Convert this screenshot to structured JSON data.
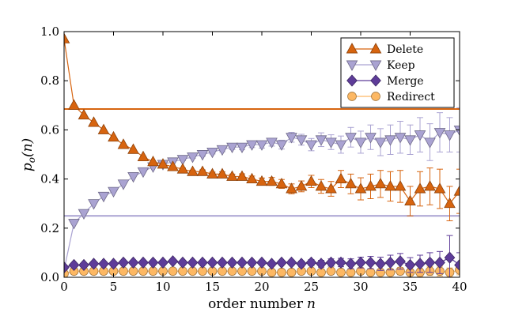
{
  "chart_data": {
    "type": "line",
    "title": "",
    "xlabel": "order number",
    "xlabel_var": "n",
    "ylabel_var": "p",
    "ylabel_sub": "o",
    "ylabel_arg": "(n)",
    "xlim": [
      0,
      40
    ],
    "ylim": [
      0,
      1.0
    ],
    "x_ticks": [
      0,
      5,
      10,
      15,
      20,
      25,
      30,
      35,
      40
    ],
    "y_ticks": [
      0.0,
      0.2,
      0.4,
      0.6,
      0.8,
      1.0
    ],
    "x_tick_labels": [
      "0",
      "5",
      "10",
      "15",
      "20",
      "25",
      "30",
      "35",
      "40"
    ],
    "y_tick_labels": [
      "0.0",
      "0.2",
      "0.4",
      "0.6",
      "0.8",
      "1.0"
    ],
    "legend_position": "top-right",
    "reference_lines": [
      {
        "series": "Delete",
        "y": 0.685,
        "color": "#d7640f"
      },
      {
        "series": "Keep",
        "y": 0.25,
        "color": "#aaa3d2"
      }
    ],
    "series": [
      {
        "name": "Delete",
        "marker": "triangle-up",
        "color": "#d7640f",
        "values": [
          0.97,
          0.7,
          0.66,
          0.63,
          0.6,
          0.57,
          0.54,
          0.52,
          0.49,
          0.47,
          0.46,
          0.45,
          0.44,
          0.43,
          0.43,
          0.42,
          0.42,
          0.41,
          0.41,
          0.4,
          0.39,
          0.39,
          0.38,
          0.36,
          0.37,
          0.39,
          0.37,
          0.36,
          0.4,
          0.38,
          0.36,
          0.37,
          0.38,
          0.37,
          0.37,
          0.31,
          0.36,
          0.37,
          0.36,
          0.3,
          0.35
        ],
        "errors": [
          0,
          0,
          0,
          0,
          0,
          0,
          0,
          0,
          0,
          0,
          0,
          0,
          0.005,
          0.006,
          0.007,
          0.008,
          0.009,
          0.01,
          0.011,
          0.012,
          0.014,
          0.016,
          0.018,
          0.02,
          0.022,
          0.025,
          0.028,
          0.03,
          0.035,
          0.04,
          0.045,
          0.05,
          0.055,
          0.06,
          0.065,
          0.06,
          0.07,
          0.075,
          0.08,
          0.07,
          0.09
        ]
      },
      {
        "name": "Keep",
        "marker": "triangle-down",
        "color": "#aaa3d2",
        "values": [
          0.03,
          0.22,
          0.26,
          0.3,
          0.33,
          0.35,
          0.38,
          0.41,
          0.43,
          0.45,
          0.46,
          0.47,
          0.48,
          0.49,
          0.5,
          0.51,
          0.52,
          0.53,
          0.53,
          0.54,
          0.54,
          0.55,
          0.54,
          0.57,
          0.56,
          0.54,
          0.56,
          0.55,
          0.54,
          0.57,
          0.55,
          0.57,
          0.55,
          0.56,
          0.57,
          0.56,
          0.58,
          0.55,
          0.59,
          0.58,
          0.6
        ],
        "errors": [
          0,
          0,
          0,
          0,
          0,
          0,
          0,
          0,
          0,
          0,
          0,
          0,
          0.005,
          0.006,
          0.007,
          0.008,
          0.009,
          0.01,
          0.011,
          0.012,
          0.014,
          0.016,
          0.018,
          0.02,
          0.022,
          0.025,
          0.028,
          0.03,
          0.035,
          0.04,
          0.045,
          0.05,
          0.055,
          0.06,
          0.065,
          0.06,
          0.07,
          0.075,
          0.08,
          0.07,
          0.09
        ]
      },
      {
        "name": "Merge",
        "marker": "diamond",
        "color": "#5e3c99",
        "values": [
          0.04,
          0.05,
          0.05,
          0.055,
          0.055,
          0.055,
          0.06,
          0.06,
          0.06,
          0.06,
          0.06,
          0.065,
          0.06,
          0.06,
          0.06,
          0.06,
          0.06,
          0.06,
          0.06,
          0.06,
          0.06,
          0.055,
          0.06,
          0.06,
          0.055,
          0.06,
          0.055,
          0.06,
          0.06,
          0.055,
          0.06,
          0.06,
          0.055,
          0.06,
          0.065,
          0.05,
          0.055,
          0.06,
          0.06,
          0.08,
          0.05
        ],
        "errors": [
          0,
          0,
          0,
          0,
          0,
          0,
          0,
          0,
          0,
          0,
          0,
          0,
          0.003,
          0.003,
          0.004,
          0.004,
          0.005,
          0.005,
          0.006,
          0.006,
          0.007,
          0.008,
          0.009,
          0.01,
          0.011,
          0.012,
          0.014,
          0.015,
          0.017,
          0.02,
          0.022,
          0.025,
          0.027,
          0.03,
          0.032,
          0.03,
          0.035,
          0.04,
          0.045,
          0.09,
          0.05
        ]
      },
      {
        "name": "Redirect",
        "marker": "circle",
        "color": "#fdb863",
        "values": [
          0.015,
          0.025,
          0.025,
          0.025,
          0.025,
          0.025,
          0.025,
          0.025,
          0.025,
          0.025,
          0.025,
          0.025,
          0.025,
          0.025,
          0.025,
          0.025,
          0.025,
          0.025,
          0.025,
          0.025,
          0.025,
          0.02,
          0.02,
          0.02,
          0.025,
          0.025,
          0.02,
          0.025,
          0.02,
          0.02,
          0.025,
          0.02,
          0.02,
          0.02,
          0.025,
          0.02,
          0.02,
          0.025,
          0.025,
          0.02,
          0.03
        ],
        "errors": [
          0,
          0,
          0,
          0,
          0,
          0,
          0,
          0,
          0,
          0,
          0,
          0,
          0.002,
          0.002,
          0.002,
          0.003,
          0.003,
          0.003,
          0.004,
          0.004,
          0.004,
          0.005,
          0.005,
          0.006,
          0.006,
          0.007,
          0.007,
          0.008,
          0.009,
          0.01,
          0.011,
          0.012,
          0.013,
          0.014,
          0.015,
          0.014,
          0.016,
          0.018,
          0.02,
          0.018,
          0.02
        ]
      }
    ]
  }
}
